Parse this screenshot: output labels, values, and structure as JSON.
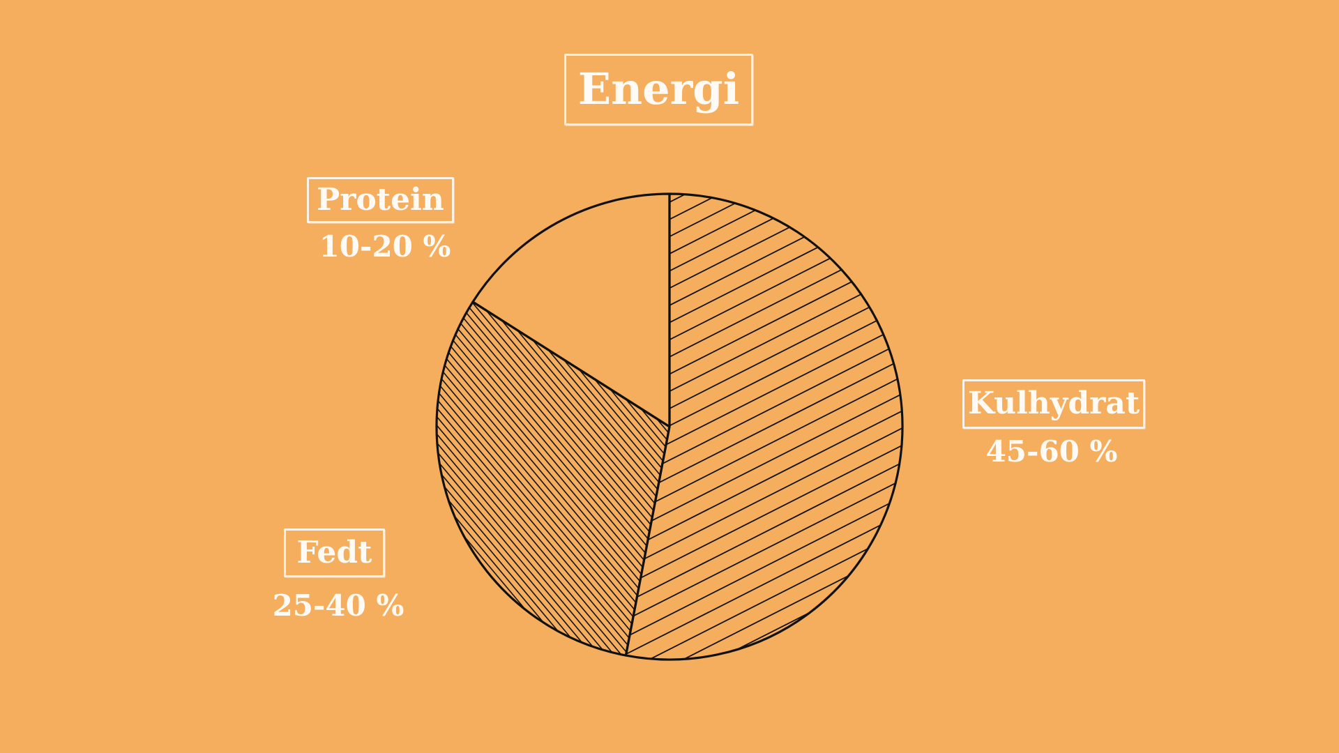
{
  "chart_data": {
    "type": "pie",
    "title": "Energi",
    "slices": [
      {
        "label": "Kulhydrat",
        "value_text": "45-60 %",
        "range": [
          45,
          60
        ],
        "share": 0.53,
        "hatch": "light"
      },
      {
        "label": "Fedt",
        "value_text": "25-40 %",
        "range": [
          25,
          40
        ],
        "share": 0.31,
        "hatch": "dense"
      },
      {
        "label": "Protein",
        "value_text": "10-20 %",
        "range": [
          10,
          20
        ],
        "share": 0.16,
        "hatch": "none"
      }
    ]
  },
  "colors": {
    "background": "#f5ad5e",
    "ink": "#111111",
    "label_text": "#fffaf4"
  }
}
